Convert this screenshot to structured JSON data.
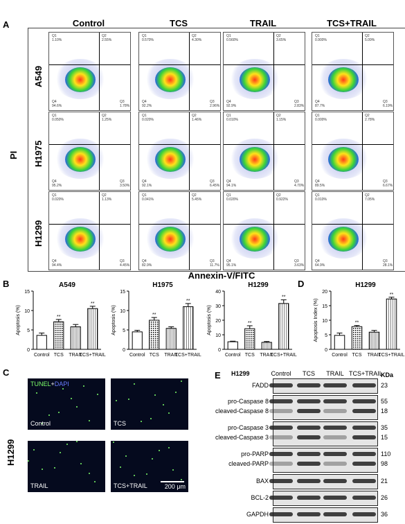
{
  "panelA": {
    "letter": "A",
    "columns": [
      "Control",
      "TCS",
      "TRAIL",
      "TCS+TRAIL"
    ],
    "rows": [
      "A549",
      "H1975",
      "H1299"
    ],
    "ylabel": "PI",
    "xlabel": "Annexin-V/FITC",
    "cells": [
      [
        [
          "1.10%",
          "2.55%",
          "1.78%",
          "94.6%"
        ],
        [
          "0.570%",
          "4.30%",
          "2.96%",
          "92.2%"
        ],
        [
          "0.560%",
          "3.65%",
          "2.83%",
          "92.9%"
        ],
        [
          "0.900%",
          "5.09%",
          "6.19%",
          "87.7%"
        ]
      ],
      [
        [
          "0.050%",
          "1.25%",
          "3.50%",
          "95.2%"
        ],
        [
          "0.020%",
          "1.46%",
          "6.45%",
          "92.1%"
        ],
        [
          "0.010%",
          "1.15%",
          "4.70%",
          "94.1%"
        ],
        [
          "0.000%",
          "2.78%",
          "6.67%",
          "89.5%"
        ]
      ],
      [
        [
          "0.020%",
          "1.13%",
          "4.45%",
          "94.4%"
        ],
        [
          "0.041%",
          "5.45%",
          "11.7%",
          "82.9%"
        ],
        [
          "0.020%",
          "0.922%",
          "3.63%",
          "95.1%"
        ],
        [
          "0.010%",
          "7.05%",
          "28.1%",
          "64.9%"
        ]
      ]
    ],
    "quadrant_names": [
      "Q1",
      "Q2",
      "Q3",
      "Q4"
    ]
  },
  "panelB": {
    "letter": "B",
    "charts": [
      {
        "title": "A549",
        "ylabel": "Apoptosis (%)",
        "ylim": [
          0,
          15
        ],
        "ticks": [
          "0",
          "5",
          "10",
          "15"
        ],
        "categories": [
          "Control",
          "TCS",
          "TRAIL",
          "TCS+TRAIL"
        ],
        "values": [
          3.6,
          7.1,
          5.8,
          10.5
        ],
        "errors": [
          0.6,
          0.6,
          0.6,
          0.6
        ],
        "sig": [
          "",
          "**",
          "",
          "**"
        ]
      },
      {
        "title": "H1975",
        "ylabel": "Apoptosis (%)",
        "ylim": [
          0,
          15
        ],
        "ticks": [
          "0",
          "5",
          "10",
          "15"
        ],
        "categories": [
          "Control",
          "TCS",
          "TRAIL",
          "TCS+TRAIL"
        ],
        "values": [
          4.5,
          7.5,
          5.4,
          11.0
        ],
        "errors": [
          0.4,
          0.7,
          0.4,
          0.8
        ],
        "sig": [
          "",
          "**",
          "",
          "**"
        ]
      },
      {
        "title": "H1299",
        "ylabel": "Apoptosis (%)",
        "ylim": [
          0,
          40
        ],
        "ticks": [
          "0",
          "10",
          "20",
          "30",
          "40"
        ],
        "categories": [
          "Control",
          "TCS",
          "TRAIL",
          "TCS+TRAIL"
        ],
        "values": [
          5.2,
          14.2,
          4.8,
          31.5
        ],
        "errors": [
          0.4,
          2.0,
          0.6,
          2.5
        ],
        "sig": [
          "",
          "**",
          "",
          "**"
        ]
      }
    ]
  },
  "panelD": {
    "letter": "D",
    "chart": {
      "title": "H1299",
      "ylabel": "Apoptosis Index (%)",
      "ylim": [
        0,
        20
      ],
      "ticks": [
        "0",
        "5",
        "10",
        "15",
        "20"
      ],
      "categories": [
        "Control",
        "TCS",
        "TRAIL",
        "TCS+TRAIL"
      ],
      "values": [
        4.8,
        7.8,
        5.9,
        17.3
      ],
      "errors": [
        0.8,
        0.4,
        0.6,
        0.6
      ],
      "sig": [
        "",
        "**",
        "",
        "**"
      ]
    }
  },
  "panelC": {
    "letter": "C",
    "row_label": "H1299",
    "legend_tunel": "TUNEL",
    "legend_plus": "+",
    "legend_dapi": "DAPI",
    "images": [
      "Control",
      "TCS",
      "TRAIL",
      "TCS+TRAIL"
    ],
    "scalebar": "200 μm"
  },
  "panelE": {
    "letter": "E",
    "cell_line": "H1299",
    "columns": [
      "Control",
      "TCS",
      "TRAIL",
      "TCS+TRAIL"
    ],
    "kda_header": "KDa",
    "blots": [
      {
        "labels": [
          "FADD"
        ],
        "kda": [
          "23"
        ]
      },
      {
        "labels": [
          "pro-Caspase 8",
          "cleaved-Caspase 8"
        ],
        "kda": [
          "55",
          "18"
        ]
      },
      {
        "labels": [
          "pro-Caspase 3",
          "cleaved-Caspase 3"
        ],
        "kda": [
          "35",
          "15"
        ]
      },
      {
        "labels": [
          "pro-PARP",
          "cleaved-PARP"
        ],
        "kda": [
          "110",
          "98"
        ]
      },
      {
        "labels": [
          "BAX"
        ],
        "kda": [
          "21"
        ]
      },
      {
        "labels": [
          "BCL-2"
        ],
        "kda": [
          "26"
        ]
      },
      {
        "labels": [
          "GAPDH"
        ],
        "kda": [
          "36"
        ]
      }
    ]
  },
  "colors": {
    "bar_fill": "#ffffff",
    "bar_stroke": "#000000",
    "hist_blue": "#1a2aa0",
    "tunel_green": "#7dff6a"
  }
}
